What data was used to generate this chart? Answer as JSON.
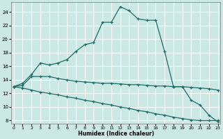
{
  "xlabel": "Humidex (Indice chaleur)",
  "bg_color": "#cce8e4",
  "grid_color": "#ffffff",
  "line_color": "#1a6b65",
  "x_ticks": [
    0,
    1,
    2,
    3,
    4,
    5,
    6,
    7,
    8,
    9,
    10,
    11,
    12,
    13,
    14,
    15,
    16,
    17,
    18,
    19,
    20,
    21,
    22,
    23
  ],
  "y_ticks": [
    8,
    10,
    12,
    14,
    16,
    18,
    20,
    22,
    24
  ],
  "ylim": [
    7.5,
    25.5
  ],
  "xlim": [
    -0.3,
    23.3
  ],
  "series1_y": [
    13.0,
    13.5,
    14.8,
    16.5,
    16.2,
    16.5,
    17.0,
    18.2,
    19.2,
    19.5,
    22.5,
    22.5,
    24.8,
    24.2,
    23.0,
    22.8,
    22.8,
    18.2,
    13.0,
    13.0,
    11.0,
    10.3,
    8.8,
    7.8
  ],
  "series2_y": [
    13.0,
    13.2,
    14.5,
    14.5,
    14.5,
    14.2,
    14.0,
    13.8,
    13.7,
    13.6,
    13.5,
    13.5,
    13.4,
    13.3,
    13.3,
    13.2,
    13.1,
    13.1,
    13.0,
    13.0,
    12.9,
    12.8,
    12.7,
    12.5
  ],
  "series3_y": [
    13.0,
    12.8,
    12.5,
    12.2,
    12.0,
    11.8,
    11.5,
    11.3,
    11.0,
    10.8,
    10.5,
    10.3,
    10.0,
    9.8,
    9.5,
    9.3,
    9.0,
    8.8,
    8.5,
    8.3,
    8.1,
    8.0,
    8.0,
    8.0
  ]
}
